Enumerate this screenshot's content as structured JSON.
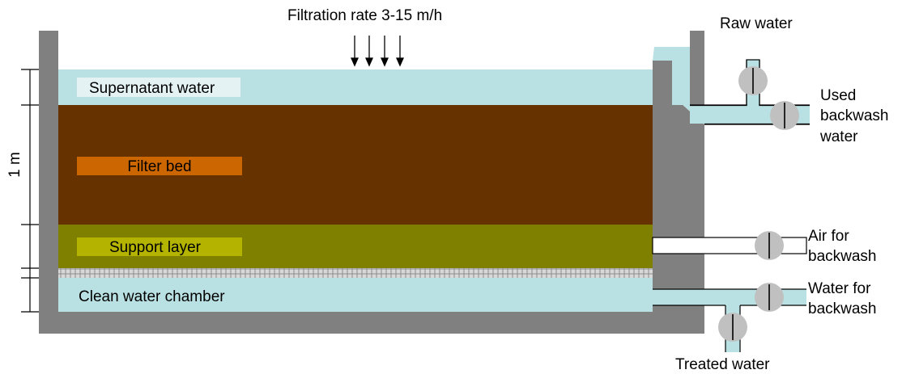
{
  "labels": {
    "filtration_rate": "Filtration rate 3-15 m/h",
    "raw_water": "Raw water",
    "used_backwash_1": "Used",
    "used_backwash_2": "backwash",
    "used_backwash_3": "water",
    "air_backwash_1": "Air for",
    "air_backwash_2": "backwash",
    "water_backwash_1": "Water for",
    "water_backwash_2": "backwash",
    "treated_water": "Treated water",
    "supernatant": "Supernatant water",
    "filter_bed": "Filter bed",
    "support_layer": "Support layer",
    "clean_chamber": "Clean water chamber",
    "scale": "1 m"
  },
  "colors": {
    "wall": "#808080",
    "water": "#b9e1e3",
    "filter_bed": "#663300",
    "filter_bed_label": "#cc6600",
    "support_layer": "#808000",
    "support_label": "#b4b400",
    "valve": "#c0c0c0",
    "label_box": "#e4f2f3"
  }
}
